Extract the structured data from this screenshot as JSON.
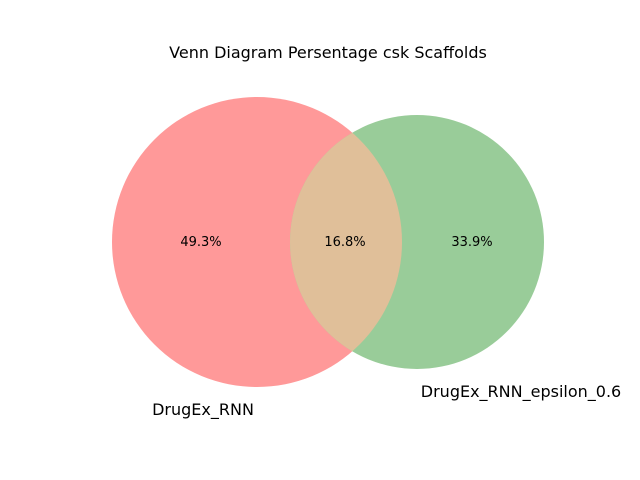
{
  "chart_data": {
    "type": "venn",
    "title": "Venn Diagram Persentage csk Scaffolds",
    "sets": [
      {
        "name": "DrugEx_RNN",
        "color": "#ff9999"
      },
      {
        "name": "DrugEx_RNN_epsilon_0.6",
        "color": "#99cc99"
      }
    ],
    "regions": {
      "only_a": "49.3%",
      "overlap": "16.8%",
      "only_b": "33.9%"
    },
    "overlap_color": "#e0bf99"
  }
}
